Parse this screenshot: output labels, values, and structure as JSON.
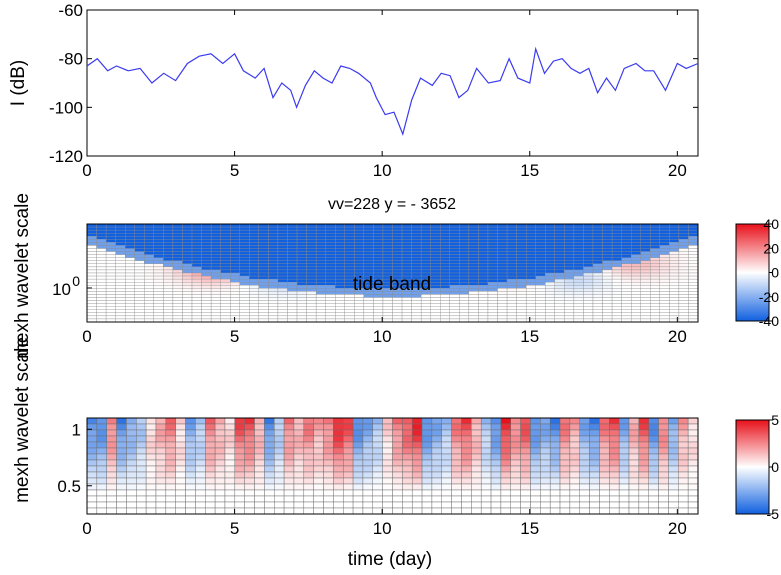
{
  "chart_data": [
    {
      "type": "line",
      "title": "",
      "xlabel": "",
      "ylabel": "I (dB)",
      "xlim": [
        0,
        20.7
      ],
      "ylim": [
        -120,
        -60
      ],
      "xticks": [
        "0",
        "5",
        "10",
        "15",
        "20"
      ],
      "yticks": [
        "-60",
        "-80",
        "-100",
        "-120"
      ],
      "color": "#3b3bf0",
      "series": [
        {
          "x": [
            0,
            0.35,
            0.7,
            1,
            1.4,
            1.8,
            2.2,
            2.6,
            3,
            3.4,
            3.8,
            4.2,
            4.6,
            5,
            5.3,
            5.7,
            6,
            6.3,
            6.6,
            6.9,
            7.1,
            7.4,
            7.7,
            8,
            8.3,
            8.6,
            8.9,
            9.2,
            9.6,
            9.8,
            10.1,
            10.4,
            10.7,
            11,
            11.3,
            11.7,
            12,
            12.3,
            12.6,
            12.9,
            13.2,
            13.6,
            14,
            14.3,
            14.6,
            15,
            15.2,
            15.5,
            15.8,
            16.1,
            16.4,
            16.7,
            17,
            17.3,
            17.6,
            17.9,
            18.2,
            18.6,
            18.9,
            19.2,
            19.6,
            20,
            20.3,
            20.7
          ],
          "y": [
            -83,
            -80,
            -85,
            -83,
            -85,
            -84,
            -90,
            -86,
            -89,
            -82,
            -79,
            -78,
            -82,
            -78,
            -85,
            -88,
            -84,
            -96,
            -90,
            -93,
            -100,
            -91,
            -85,
            -88,
            -90,
            -83,
            -84,
            -86,
            -90,
            -96,
            -103,
            -102,
            -111,
            -97,
            -88,
            -91,
            -86,
            -87,
            -96,
            -93,
            -84,
            -90,
            -89,
            -80,
            -88,
            -90,
            -76,
            -86,
            -81,
            -80,
            -84,
            -86,
            -84,
            -94,
            -88,
            -93,
            -84,
            -82,
            -85,
            -85,
            -93,
            -82,
            -84,
            -82
          ]
        }
      ]
    },
    {
      "type": "heatmap",
      "title": "vv=228  y = - 3652",
      "xlabel": "",
      "ylabel": "mexh wavelet scale",
      "xlim": [
        0,
        20.7
      ],
      "xticks": [
        "0",
        "5",
        "10",
        "15",
        "20"
      ],
      "yticks": [
        "10",
        "0"
      ],
      "colorbar": {
        "range": [
          -40,
          40
        ],
        "ticks": [
          "40",
          "20",
          "0",
          "-20",
          "-40"
        ]
      },
      "grid": {
        "cols": 64,
        "rows": 32
      },
      "highs": [
        {
          "x": 4.3,
          "scale": 0.55,
          "value": 20
        },
        {
          "x": 8.6,
          "scale": 0.55,
          "value": 22
        },
        {
          "x": 12.2,
          "scale": 0.6,
          "value": 14
        },
        {
          "x": 14.8,
          "scale": 0.55,
          "value": 16
        },
        {
          "x": 18.5,
          "scale": 0.6,
          "value": 12
        }
      ],
      "lows": [
        {
          "x": 6.8,
          "scale": 0.45,
          "value": -12
        },
        {
          "x": 10.8,
          "scale": 0.62,
          "value": -18
        },
        {
          "x": 16.5,
          "scale": 0.45,
          "value": -10
        }
      ],
      "edge_value": -40
    },
    {
      "type": "heatmap",
      "title": "tide band",
      "xlabel": "time (day)",
      "ylabel": "mexh wavelet scale",
      "xlim": [
        0,
        20.7
      ],
      "ylim": [
        0.25,
        1.1
      ],
      "xticks": [
        "0",
        "5",
        "10",
        "15",
        "20"
      ],
      "yticks": [
        "1",
        "0.5"
      ],
      "colorbar": {
        "range": [
          -5,
          5
        ],
        "ticks": [
          "5",
          "0",
          "-5"
        ]
      },
      "grid": {
        "cols": 62,
        "rows": 16
      },
      "column_amplitudes": [
        -4,
        -4,
        3,
        -4,
        -3,
        -2,
        1,
        2,
        3,
        1,
        -3,
        -2,
        3,
        2,
        1,
        4,
        4,
        2,
        -4,
        -2,
        3,
        2,
        3,
        2,
        3,
        5,
        4,
        -4,
        -3,
        -2,
        1,
        3,
        4,
        5,
        -4,
        -3,
        -2,
        3,
        4,
        2,
        -2,
        -4,
        5,
        3,
        4,
        -4,
        -3,
        -4,
        3,
        2,
        -3,
        -4,
        3,
        4,
        -3,
        2,
        4,
        -4,
        3,
        -3,
        2,
        1
      ]
    }
  ]
}
